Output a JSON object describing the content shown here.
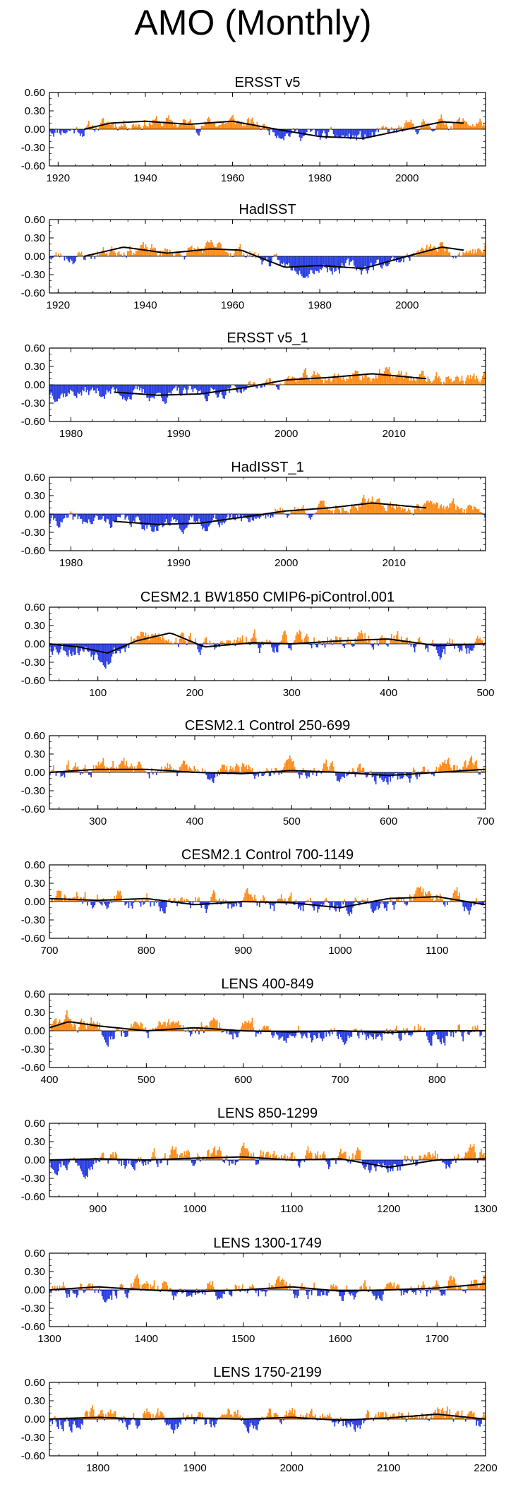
{
  "page_title": "AMO (Monthly)",
  "colors": {
    "positive": "#ff8c1a",
    "negative": "#2b3fe0",
    "smooth": "#000000",
    "axis": "#000000"
  },
  "chart_data": [
    {
      "type": "bar",
      "title": "ERSST v5",
      "xlim": [
        1918,
        2018
      ],
      "xticks": [
        1920,
        1940,
        1960,
        1980,
        2000
      ],
      "ylim": [
        -0.6,
        0.6
      ],
      "yticks": [
        0.6,
        0.3,
        0.0,
        -0.3,
        -0.6
      ],
      "ytick_labels": [
        "0.60",
        "0.30",
        "0.00",
        "-0.30",
        "-0.60"
      ],
      "smooth": {
        "x": [
          1926,
          1932,
          1940,
          1950,
          1960,
          1970,
          1980,
          1990,
          2000,
          2008,
          2013
        ],
        "y": [
          0.0,
          0.1,
          0.13,
          0.08,
          0.13,
          0.0,
          -0.12,
          -0.15,
          0.0,
          0.12,
          0.1
        ]
      },
      "noise": 0.12,
      "seed": 11
    },
    {
      "type": "bar",
      "title": "HadISST",
      "xlim": [
        1918,
        2018
      ],
      "xticks": [
        1920,
        1940,
        1960,
        1980,
        2000
      ],
      "ylim": [
        -0.6,
        0.6
      ],
      "yticks": [
        0.6,
        0.3,
        0.0,
        -0.3,
        -0.6
      ],
      "ytick_labels": [
        "0.60",
        "0.30",
        "0.00",
        "-0.30",
        "-0.60"
      ],
      "smooth": {
        "x": [
          1926,
          1935,
          1945,
          1955,
          1962,
          1972,
          1980,
          1990,
          2000,
          2008,
          2013
        ],
        "y": [
          0.0,
          0.15,
          0.05,
          0.12,
          0.1,
          -0.18,
          -0.15,
          -0.2,
          0.0,
          0.15,
          0.1
        ]
      },
      "noise": 0.12,
      "seed": 23
    },
    {
      "type": "bar",
      "title": "ERSST v5_1",
      "xlim": [
        1978,
        2018.5
      ],
      "xticks": [
        1980,
        1990,
        2000,
        2010
      ],
      "ylim": [
        -0.6,
        0.6
      ],
      "yticks": [
        0.6,
        0.3,
        0.0,
        -0.3,
        -0.6
      ],
      "ytick_labels": [
        "0.60",
        "0.30",
        "0.00",
        "-0.30",
        "-0.60"
      ],
      "smooth": {
        "x": [
          1984,
          1988,
          1992,
          1996,
          2000,
          2004,
          2008,
          2013
        ],
        "y": [
          -0.12,
          -0.17,
          -0.15,
          -0.05,
          0.08,
          0.12,
          0.18,
          0.1
        ]
      },
      "noise": 0.12,
      "seed": 37
    },
    {
      "type": "bar",
      "title": "HadISST_1",
      "xlim": [
        1978,
        2018.5
      ],
      "xticks": [
        1980,
        1990,
        2000,
        2010
      ],
      "ylim": [
        -0.6,
        0.6
      ],
      "yticks": [
        0.6,
        0.3,
        0.0,
        -0.3,
        -0.6
      ],
      "ytick_labels": [
        "0.60",
        "0.30",
        "0.00",
        "-0.30",
        "-0.60"
      ],
      "smooth": {
        "x": [
          1984,
          1988,
          1992,
          1996,
          2000,
          2004,
          2008,
          2013
        ],
        "y": [
          -0.12,
          -0.17,
          -0.15,
          -0.05,
          0.05,
          0.1,
          0.18,
          0.1
        ]
      },
      "noise": 0.12,
      "seed": 41
    },
    {
      "type": "bar",
      "title": "CESM2.1 BW1850 CMIP6-piControl.001",
      "xlim": [
        50,
        500
      ],
      "xticks": [
        100,
        200,
        300,
        400,
        500
      ],
      "ylim": [
        -0.6,
        0.6
      ],
      "yticks": [
        0.6,
        0.3,
        0.0,
        -0.3,
        -0.6
      ],
      "ytick_labels": [
        "0.60",
        "0.30",
        "0.00",
        "-0.30",
        "-0.60"
      ],
      "smooth": {
        "x": [
          50,
          80,
          110,
          140,
          175,
          210,
          260,
          300,
          350,
          400,
          450,
          500
        ],
        "y": [
          0.0,
          -0.05,
          -0.15,
          0.05,
          0.18,
          -0.05,
          0.02,
          0.0,
          0.05,
          0.08,
          -0.03,
          0.0
        ]
      },
      "noise": 0.16,
      "seed": 53
    },
    {
      "type": "bar",
      "title": "CESM2.1 Control 250-699",
      "xlim": [
        250,
        700
      ],
      "xticks": [
        300,
        400,
        500,
        600,
        700
      ],
      "ylim": [
        -0.6,
        0.6
      ],
      "yticks": [
        0.6,
        0.3,
        0.0,
        -0.3,
        -0.6
      ],
      "ytick_labels": [
        "0.60",
        "0.30",
        "0.00",
        "-0.30",
        "-0.60"
      ],
      "smooth": {
        "x": [
          250,
          300,
          350,
          400,
          450,
          500,
          550,
          600,
          650,
          700
        ],
        "y": [
          0.0,
          0.05,
          0.05,
          0.0,
          -0.02,
          0.03,
          0.0,
          -0.05,
          0.0,
          0.05
        ]
      },
      "noise": 0.16,
      "seed": 61
    },
    {
      "type": "bar",
      "title": "CESM2.1 Control 700-1149",
      "xlim": [
        700,
        1150
      ],
      "xticks": [
        700,
        800,
        900,
        1000,
        1100
      ],
      "ylim": [
        -0.6,
        0.6
      ],
      "yticks": [
        0.6,
        0.3,
        0.0,
        -0.3,
        -0.6
      ],
      "ytick_labels": [
        "0.60",
        "0.30",
        "0.00",
        "-0.30",
        "-0.60"
      ],
      "smooth": {
        "x": [
          700,
          750,
          800,
          850,
          900,
          950,
          1000,
          1050,
          1100,
          1150
        ],
        "y": [
          0.05,
          0.02,
          0.05,
          -0.05,
          0.0,
          -0.02,
          -0.1,
          0.05,
          0.08,
          -0.05
        ]
      },
      "noise": 0.16,
      "seed": 71
    },
    {
      "type": "bar",
      "title": "LENS 400-849",
      "xlim": [
        400,
        850
      ],
      "xticks": [
        400,
        500,
        600,
        700,
        800
      ],
      "ylim": [
        -0.6,
        0.6
      ],
      "yticks": [
        0.6,
        0.3,
        0.0,
        -0.3,
        -0.6
      ],
      "ytick_labels": [
        "0.60",
        "0.30",
        "0.00",
        "-0.30",
        "-0.60"
      ],
      "smooth": {
        "x": [
          400,
          420,
          450,
          500,
          550,
          600,
          650,
          700,
          750,
          800,
          850
        ],
        "y": [
          0.05,
          0.15,
          0.08,
          0.0,
          0.05,
          0.0,
          -0.02,
          0.0,
          -0.03,
          0.0,
          0.0
        ]
      },
      "noise": 0.16,
      "seed": 83
    },
    {
      "type": "bar",
      "title": "LENS 850-1299",
      "xlim": [
        850,
        1300
      ],
      "xticks": [
        900,
        1000,
        1100,
        1200,
        1300
      ],
      "ylim": [
        -0.6,
        0.6
      ],
      "yticks": [
        0.6,
        0.3,
        0.0,
        -0.3,
        -0.6
      ],
      "ytick_labels": [
        "0.60",
        "0.30",
        "0.00",
        "-0.30",
        "-0.60"
      ],
      "smooth": {
        "x": [
          850,
          900,
          950,
          1000,
          1050,
          1100,
          1150,
          1200,
          1250,
          1300
        ],
        "y": [
          0.0,
          0.02,
          0.0,
          0.03,
          0.05,
          0.0,
          0.02,
          -0.12,
          0.0,
          0.02
        ]
      },
      "noise": 0.16,
      "seed": 97
    },
    {
      "type": "bar",
      "title": "LENS 1300-1749",
      "xlim": [
        1300,
        1750
      ],
      "xticks": [
        1300,
        1400,
        1500,
        1600,
        1700
      ],
      "ylim": [
        -0.6,
        0.6
      ],
      "yticks": [
        0.6,
        0.3,
        0.0,
        -0.3,
        -0.6
      ],
      "ytick_labels": [
        "0.60",
        "0.30",
        "0.00",
        "-0.30",
        "-0.60"
      ],
      "smooth": {
        "x": [
          1300,
          1350,
          1400,
          1450,
          1500,
          1550,
          1600,
          1650,
          1700,
          1750
        ],
        "y": [
          0.0,
          0.05,
          0.0,
          -0.03,
          0.0,
          0.05,
          -0.02,
          0.0,
          0.03,
          0.1
        ]
      },
      "noise": 0.16,
      "seed": 101
    },
    {
      "type": "bar",
      "title": "LENS 1750-2199",
      "xlim": [
        1750,
        2200
      ],
      "xticks": [
        1800,
        1900,
        2000,
        2100,
        2200
      ],
      "ylim": [
        -0.6,
        0.6
      ],
      "yticks": [
        0.6,
        0.3,
        0.0,
        -0.3,
        -0.6
      ],
      "ytick_labels": [
        "0.60",
        "0.30",
        "0.00",
        "-0.30",
        "-0.60"
      ],
      "smooth": {
        "x": [
          1750,
          1800,
          1850,
          1900,
          1950,
          2000,
          2050,
          2100,
          2150,
          2200
        ],
        "y": [
          0.0,
          0.03,
          0.0,
          0.02,
          0.0,
          0.03,
          -0.02,
          0.02,
          0.08,
          0.0
        ]
      },
      "noise": 0.16,
      "seed": 113
    }
  ]
}
